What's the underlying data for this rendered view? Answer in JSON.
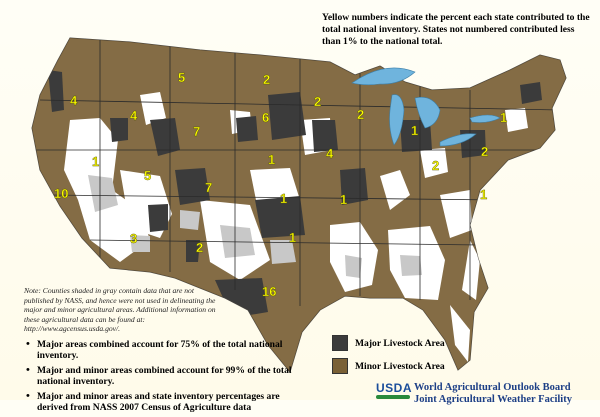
{
  "header_note": "Yellow numbers indicate the percent each state contributed to the total national inventory.  States not numbered contributed less than 1% to the national total.",
  "county_note": "Note:  Counties shaded in gray contain data that are not published by NASS, and hence were not used in delineating the major and minor agricultural areas. Additional information on these agricultural data can be found at:  http://www.agcensus.usda.gov/.",
  "bullets": [
    "Major areas combined account for 75% of the total national inventory.",
    "Major and minor areas combined account for 99% of the total national inventory.",
    "Major and minor areas and state inventory percentages are derived from NASS 2007 Census of Agriculture data"
  ],
  "legend": {
    "major_label": "Major Livestock Area",
    "minor_label": "Minor Livestock Area",
    "major_color": "#3b3b3b",
    "minor_color": "#7a6035"
  },
  "colors": {
    "map_brown": "#7a6035",
    "map_dark": "#3b3b3b",
    "map_gray": "#c8c8c8",
    "lakes": "#6fb4dd",
    "state_number": "#ffff00"
  },
  "state_percents": [
    {
      "id": "WA",
      "value": "4"
    },
    {
      "id": "MT",
      "value": "5"
    },
    {
      "id": "ND",
      "value": "2"
    },
    {
      "id": "MN",
      "value": "2"
    },
    {
      "id": "WI",
      "value": "2"
    },
    {
      "id": "ID",
      "value": "4"
    },
    {
      "id": "WY",
      "value": "7"
    },
    {
      "id": "SD",
      "value": "6"
    },
    {
      "id": "MI",
      "value": "1"
    },
    {
      "id": "NY",
      "value": "1"
    },
    {
      "id": "OR",
      "value": "1"
    },
    {
      "id": "UT",
      "value": "5"
    },
    {
      "id": "CO",
      "value": "7"
    },
    {
      "id": "NE",
      "value": "1"
    },
    {
      "id": "IA",
      "value": "4"
    },
    {
      "id": "PA",
      "value": "2"
    },
    {
      "id": "OH",
      "value": "2"
    },
    {
      "id": "NV",
      "value": "10"
    },
    {
      "id": "KS",
      "value": "1"
    },
    {
      "id": "MO",
      "value": "1"
    },
    {
      "id": "VA",
      "value": "1"
    },
    {
      "id": "AZ",
      "value": "3"
    },
    {
      "id": "NM",
      "value": "2"
    },
    {
      "id": "OK",
      "value": "1"
    },
    {
      "id": "TX",
      "value": "16"
    }
  ],
  "footer": {
    "logo_text": "USDA",
    "board": "World Agricultural Outlook Board",
    "facility": "Joint Agricultural Weather Facility"
  }
}
